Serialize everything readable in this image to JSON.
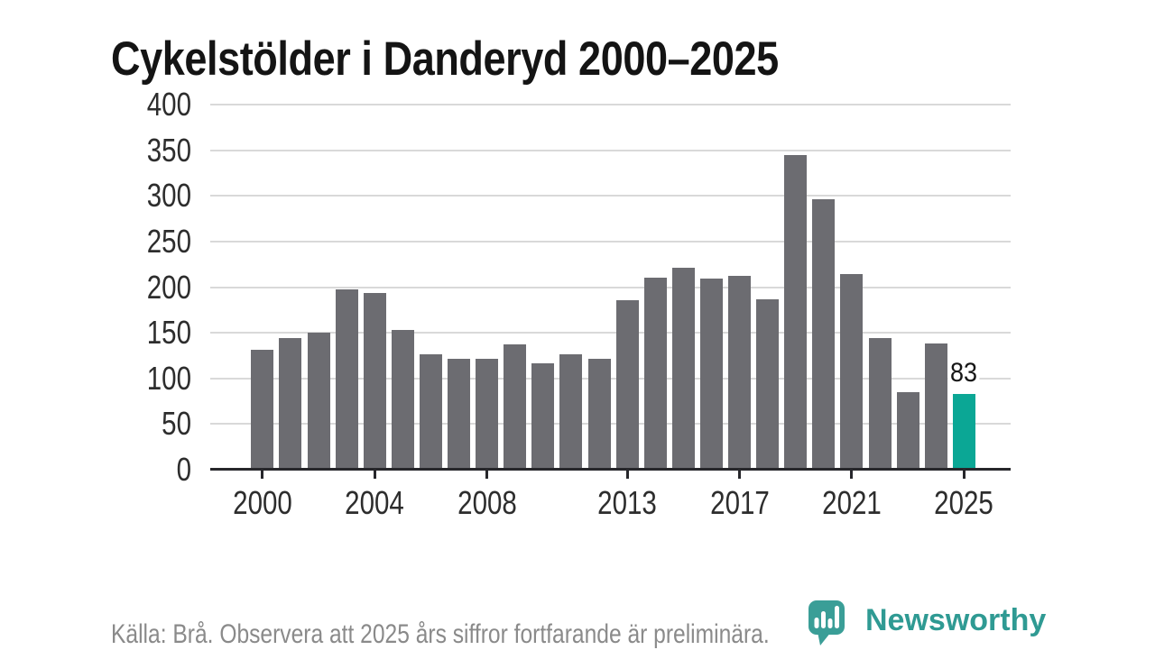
{
  "chart": {
    "title": "Cykelstölder i Danderyd 2000–2025"
  },
  "chart_data": {
    "type": "bar",
    "title": "Cykelstölder i Danderyd 2000–2025",
    "categories": [
      2000,
      2001,
      2002,
      2003,
      2004,
      2005,
      2006,
      2007,
      2008,
      2009,
      2010,
      2011,
      2012,
      2013,
      2014,
      2015,
      2016,
      2017,
      2018,
      2019,
      2020,
      2021,
      2022,
      2023,
      2024,
      2025
    ],
    "values": [
      131,
      144,
      150,
      198,
      194,
      153,
      126,
      121,
      121,
      137,
      117,
      126,
      121,
      186,
      210,
      221,
      209,
      212,
      187,
      345,
      296,
      214,
      144,
      85,
      138,
      83
    ],
    "ylim": [
      0,
      400
    ],
    "y_ticks": [
      0,
      50,
      100,
      150,
      200,
      250,
      300,
      350,
      400
    ],
    "x_tick_years": [
      2000,
      2004,
      2008,
      2013,
      2017,
      2021,
      2025
    ],
    "x_tick_labels": [
      "2000",
      "2004",
      "2008",
      "2013",
      "2017",
      "2021",
      "2025"
    ],
    "grid": "horizontal",
    "legend": "none",
    "highlight": {
      "year": 2025,
      "value": 83,
      "label": "83"
    },
    "bar_color": "#6c6c71",
    "highlight_color": "#0ba795"
  },
  "footer": {
    "source_note": "Källa: Brå. Observera att 2025 års siffror fortfarande är preliminära."
  },
  "branding": {
    "logo_text": "Newsworthy",
    "logo_icon": "speech-bubble-bar-chart-icon",
    "logo_color": "#2f9a93"
  },
  "colors": {
    "background": "#ffffff",
    "title": "#141414",
    "axis": "#27272b",
    "axis_label": "#2d2d2d",
    "gridline": "#d9d9d9",
    "source_note": "#8a8a8a"
  }
}
